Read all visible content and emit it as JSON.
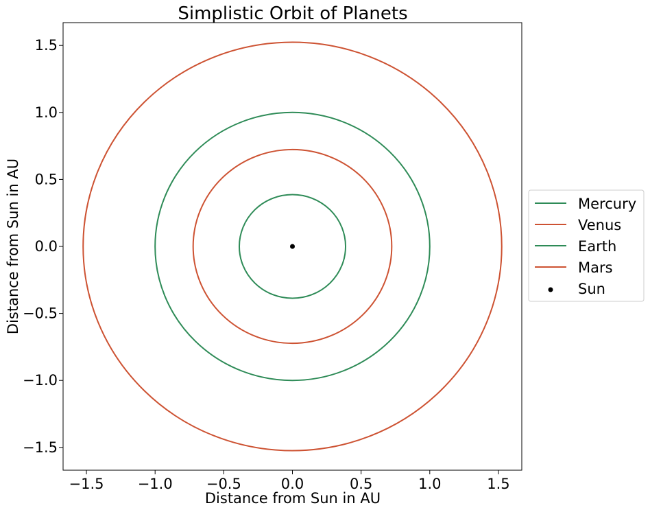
{
  "chart_data": {
    "type": "line",
    "title": "Simplistic Orbit of Planets",
    "xlabel": "Distance from Sun in AU",
    "ylabel": "Distance from Sun in AU",
    "xlim": [
      -1.67,
      1.67
    ],
    "ylim": [
      -1.67,
      1.67
    ],
    "xticks": [
      -1.5,
      -1.0,
      -0.5,
      0.0,
      0.5,
      1.0,
      1.5
    ],
    "yticks": [
      -1.5,
      -1.0,
      -0.5,
      0.0,
      0.5,
      1.0,
      1.5
    ],
    "xtick_labels": [
      "−1.5",
      "−1.0",
      "−0.5",
      "0.0",
      "0.5",
      "1.0",
      "1.5"
    ],
    "ytick_labels": [
      "−1.5",
      "−1.0",
      "−0.5",
      "0.0",
      "0.5",
      "1.0",
      "1.5"
    ],
    "grid": false,
    "legend_position": "outside right, centered",
    "series": [
      {
        "name": "Mercury",
        "shape": "circle",
        "center": [
          0,
          0
        ],
        "radius": 0.387,
        "color": "#2e8b57"
      },
      {
        "name": "Venus",
        "shape": "circle",
        "center": [
          0,
          0
        ],
        "radius": 0.723,
        "color": "#cd5232"
      },
      {
        "name": "Earth",
        "shape": "circle",
        "center": [
          0,
          0
        ],
        "radius": 1.0,
        "color": "#2e8b57"
      },
      {
        "name": "Mars",
        "shape": "circle",
        "center": [
          0,
          0
        ],
        "radius": 1.524,
        "color": "#cd5232"
      }
    ],
    "points": [
      {
        "name": "Sun",
        "x": 0,
        "y": 0,
        "color": "#000000"
      }
    ]
  }
}
